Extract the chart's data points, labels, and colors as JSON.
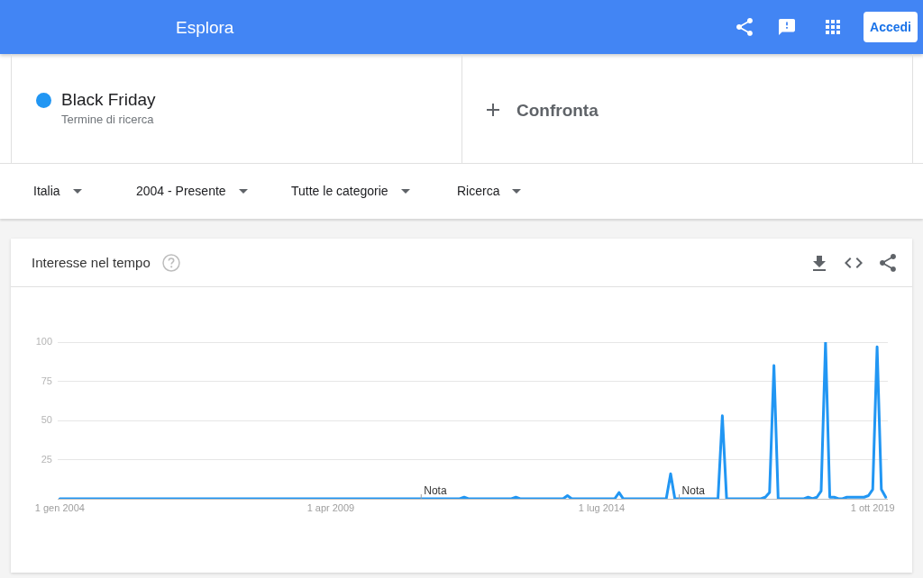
{
  "chart_data": {
    "type": "line",
    "title": "Interesse nel tempo",
    "annotations": [
      "Esplora",
      "Accedi",
      "Termine di ricerca",
      "Confronta",
      "Italia",
      "2004 - Presente",
      "Tutte le categorie",
      "Ricerca",
      {
        "text": "Nota",
        "x": "2011-01-01",
        "y": 0
      },
      {
        "text": "Nota",
        "x": "2016-01-01",
        "y": 0
      }
    ],
    "x": [
      "2004-01",
      "2004-02",
      "2004-03",
      "2004-04",
      "2004-05",
      "2004-06",
      "2004-07",
      "2004-08",
      "2004-09",
      "2004-10",
      "2004-11",
      "2004-12",
      "2005-01",
      "2005-02",
      "2005-03",
      "2005-04",
      "2005-05",
      "2005-06",
      "2005-07",
      "2005-08",
      "2005-09",
      "2005-10",
      "2005-11",
      "2005-12",
      "2006-01",
      "2006-02",
      "2006-03",
      "2006-04",
      "2006-05",
      "2006-06",
      "2006-07",
      "2006-08",
      "2006-09",
      "2006-10",
      "2006-11",
      "2006-12",
      "2007-01",
      "2007-02",
      "2007-03",
      "2007-04",
      "2007-05",
      "2007-06",
      "2007-07",
      "2007-08",
      "2007-09",
      "2007-10",
      "2007-11",
      "2007-12",
      "2008-01",
      "2008-02",
      "2008-03",
      "2008-04",
      "2008-05",
      "2008-06",
      "2008-07",
      "2008-08",
      "2008-09",
      "2008-10",
      "2008-11",
      "2008-12",
      "2009-01",
      "2009-02",
      "2009-03",
      "2009-04",
      "2009-05",
      "2009-06",
      "2009-07",
      "2009-08",
      "2009-09",
      "2009-10",
      "2009-11",
      "2009-12",
      "2010-01",
      "2010-02",
      "2010-03",
      "2010-04",
      "2010-05",
      "2010-06",
      "2010-07",
      "2010-08",
      "2010-09",
      "2010-10",
      "2010-11",
      "2010-12",
      "2011-01",
      "2011-02",
      "2011-03",
      "2011-04",
      "2011-05",
      "2011-06",
      "2011-07",
      "2011-08",
      "2011-09",
      "2011-10",
      "2011-11",
      "2011-12",
      "2012-01",
      "2012-02",
      "2012-03",
      "2012-04",
      "2012-05",
      "2012-06",
      "2012-07",
      "2012-08",
      "2012-09",
      "2012-10",
      "2012-11",
      "2012-12",
      "2013-01",
      "2013-02",
      "2013-03",
      "2013-04",
      "2013-05",
      "2013-06",
      "2013-07",
      "2013-08",
      "2013-09",
      "2013-10",
      "2013-11",
      "2013-12",
      "2014-01",
      "2014-02",
      "2014-03",
      "2014-04",
      "2014-05",
      "2014-06",
      "2014-07",
      "2014-08",
      "2014-09",
      "2014-10",
      "2014-11",
      "2014-12",
      "2015-01",
      "2015-02",
      "2015-03",
      "2015-04",
      "2015-05",
      "2015-06",
      "2015-07",
      "2015-08",
      "2015-09",
      "2015-10",
      "2015-11",
      "2015-12",
      "2016-01",
      "2016-02",
      "2016-03",
      "2016-04",
      "2016-05",
      "2016-06",
      "2016-07",
      "2016-08",
      "2016-09",
      "2016-10",
      "2016-11",
      "2016-12",
      "2017-01",
      "2017-02",
      "2017-03",
      "2017-04",
      "2017-05",
      "2017-06",
      "2017-07",
      "2017-08",
      "2017-09",
      "2017-10",
      "2017-11",
      "2017-12",
      "2018-01",
      "2018-02",
      "2018-03",
      "2018-04",
      "2018-05",
      "2018-06",
      "2018-07",
      "2018-08",
      "2018-09",
      "2018-10",
      "2018-11",
      "2018-12",
      "2019-01",
      "2019-02",
      "2019-03",
      "2019-04",
      "2019-05",
      "2019-06",
      "2019-07",
      "2019-08",
      "2019-09",
      "2019-10",
      "2019-11",
      "2019-12",
      "2020-01"
    ],
    "series": [
      {
        "name": "Black Friday",
        "color": "#2196f3",
        "values": [
          0,
          0,
          0,
          0,
          0,
          0,
          0,
          0,
          0,
          0,
          0,
          0,
          0,
          0,
          0,
          0,
          0,
          0,
          0,
          0,
          0,
          0,
          0,
          0,
          0,
          0,
          0,
          0,
          0,
          0,
          0,
          0,
          0,
          0,
          0,
          0,
          0,
          0,
          0,
          0,
          0,
          0,
          0,
          0,
          0,
          0,
          0,
          0,
          0,
          0,
          0,
          0,
          0,
          0,
          0,
          0,
          0,
          0,
          0,
          0,
          0,
          0,
          0,
          0,
          0,
          0,
          0,
          0,
          0,
          0,
          0,
          0,
          0,
          0,
          0,
          0,
          0,
          0,
          0,
          0,
          0,
          0,
          0,
          0,
          0,
          0,
          0,
          0,
          0,
          0,
          0,
          0,
          0,
          0,
          1,
          0,
          0,
          0,
          0,
          0,
          0,
          0,
          0,
          0,
          0,
          0,
          1,
          0,
          0,
          0,
          0,
          0,
          0,
          0,
          0,
          0,
          0,
          0,
          2,
          0,
          0,
          0,
          0,
          0,
          0,
          0,
          0,
          0,
          0,
          0,
          4,
          0,
          0,
          0,
          0,
          0,
          0,
          0,
          0,
          0,
          0,
          0,
          16,
          0,
          0,
          0,
          0,
          0,
          0,
          0,
          0,
          0,
          0,
          0,
          53,
          0,
          0,
          0,
          0,
          0,
          0,
          0,
          0,
          0,
          1,
          4,
          85,
          0,
          0,
          0,
          0,
          0,
          0,
          0,
          1,
          0,
          1,
          5,
          100,
          1,
          1,
          0,
          0,
          1,
          1,
          1,
          1,
          1,
          2,
          6,
          97,
          6,
          1
        ]
      }
    ],
    "xlim": [
      "2003-12-17",
      "2020-01-16"
    ],
    "xticks": [
      {
        "value": "2004-01-01",
        "label": "1 gen 2004"
      },
      {
        "value": "2009-04-01",
        "label": "1 apr 2009"
      },
      {
        "value": "2014-07-01",
        "label": "1 lug 2014"
      },
      {
        "value": "2019-10-01",
        "label": "1 ott 2019"
      }
    ],
    "ylim": [
      0,
      100
    ],
    "yticks": [
      {
        "value": 0,
        "label": null
      },
      25,
      50,
      75,
      100
    ],
    "grid": "y",
    "legend": "top left"
  }
}
